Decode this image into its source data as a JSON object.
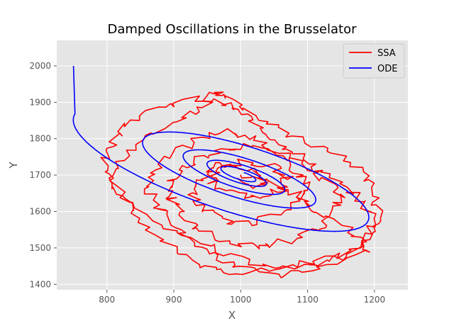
{
  "chart_data": {
    "type": "line",
    "title": "Damped Oscillations in the Brusselator",
    "xlabel": "X",
    "ylabel": "Y",
    "xlim": [
      725,
      1250
    ],
    "ylim": [
      1385,
      2070
    ],
    "xticks": [
      800,
      900,
      1000,
      1100,
      1200
    ],
    "yticks": [
      1400,
      1500,
      1600,
      1700,
      1800,
      1900,
      2000
    ],
    "grid": true,
    "legend_position": "top-right",
    "background_color": "#e5e5e5",
    "series": [
      {
        "name": "SSA",
        "color": "#ff0000",
        "note_shape": "noisy stochastic trajectory",
        "x": [
          1000,
          1050,
          1090,
          1110,
          1160,
          1180,
          1190,
          1120,
          1060,
          1000,
          940,
          880,
          820,
          810,
          830,
          870,
          920,
          950,
          960,
          980,
          1010,
          1050,
          1100,
          1150,
          1190,
          1200,
          1210,
          1190,
          1150,
          1100,
          1050,
          990,
          940,
          900,
          860,
          830,
          810,
          800,
          810,
          840,
          880,
          930,
          970,
          1000,
          1030,
          1060,
          1090,
          1120,
          1150,
          1180,
          1200,
          1190,
          1160,
          1110,
          1060,
          1010,
          970,
          930,
          900,
          880,
          860,
          870,
          900,
          940,
          980,
          1020,
          1060,
          1100,
          1130,
          1150,
          1140,
          1110,
          1070,
          1030,
          990,
          950,
          920,
          900,
          890,
          900,
          930,
          970,
          1010,
          1050,
          1080,
          1100,
          1090,
          1060,
          1020,
          980,
          950,
          930,
          940,
          970,
          1010,
          1050,
          1070,
          1060,
          1030,
          990,
          960,
          950,
          970,
          1000,
          1030,
          1040,
          1020,
          990
        ],
        "y": [
          1700,
          1680,
          1640,
          1600,
          1560,
          1520,
          1490,
          1450,
          1440,
          1470,
          1520,
          1570,
          1640,
          1700,
          1760,
          1820,
          1860,
          1900,
          1930,
          1920,
          1880,
          1830,
          1790,
          1750,
          1700,
          1640,
          1580,
          1520,
          1480,
          1460,
          1440,
          1430,
          1450,
          1500,
          1560,
          1620,
          1680,
          1740,
          1800,
          1850,
          1890,
          1910,
          1900,
          1870,
          1830,
          1790,
          1750,
          1710,
          1670,
          1630,
          1580,
          1530,
          1480,
          1450,
          1420,
          1440,
          1470,
          1510,
          1560,
          1610,
          1660,
          1710,
          1760,
          1800,
          1820,
          1800,
          1760,
          1720,
          1680,
          1640,
          1590,
          1550,
          1520,
          1500,
          1510,
          1540,
          1580,
          1620,
          1660,
          1700,
          1740,
          1770,
          1780,
          1760,
          1720,
          1680,
          1640,
          1600,
          1570,
          1570,
          1600,
          1640,
          1680,
          1720,
          1740,
          1720,
          1690,
          1660,
          1640,
          1650,
          1680,
          1710,
          1730,
          1720,
          1700,
          1680,
          1670,
          1700
        ]
      },
      {
        "name": "ODE",
        "color": "#0000ff",
        "note_shape": "damped spiral from (750, 2000) converging to (1000, 1700)",
        "start": [
          750,
          2000
        ],
        "center": [
          1000,
          1700
        ]
      }
    ]
  }
}
